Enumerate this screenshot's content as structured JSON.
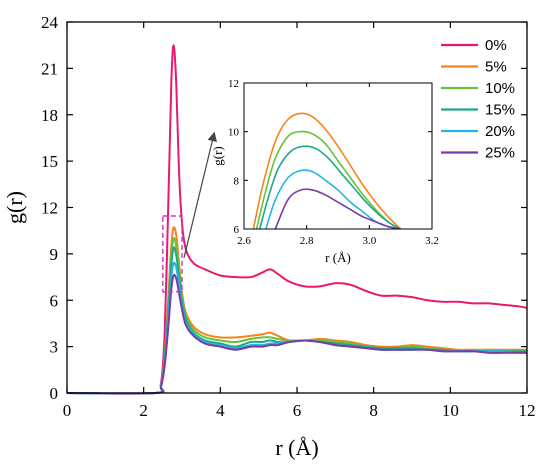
{
  "chart_data": [
    {
      "type": "line",
      "xlabel": "r (Å)",
      "ylabel": "g(r)",
      "xlim": [
        0,
        12
      ],
      "ylim": [
        0,
        24
      ],
      "xticks": [
        0,
        2,
        4,
        6,
        8,
        10,
        12
      ],
      "yticks": [
        0,
        3,
        6,
        9,
        12,
        15,
        18,
        21,
        24
      ],
      "legend_position": "top-right",
      "grid": false,
      "series": [
        {
          "name": "0%",
          "color": "#e8196e",
          "x": [
            0,
            2.3,
            2.45,
            2.55,
            2.65,
            2.72,
            2.78,
            2.85,
            2.92,
            3.0,
            3.1,
            3.3,
            3.6,
            4.0,
            4.4,
            4.8,
            5.1,
            5.3,
            5.5,
            5.8,
            6.2,
            6.6,
            7.0,
            7.4,
            7.8,
            8.2,
            8.6,
            9.0,
            9.4,
            9.8,
            10.2,
            10.6,
            11.0,
            11.4,
            11.8,
            12.0
          ],
          "y": [
            0,
            0,
            0.6,
            4.0,
            13.0,
            20.0,
            22.5,
            20.0,
            14.5,
            11.0,
            9.3,
            8.4,
            8.0,
            7.6,
            7.5,
            7.5,
            7.8,
            8.0,
            7.7,
            7.2,
            6.9,
            6.9,
            7.1,
            7.0,
            6.6,
            6.3,
            6.3,
            6.2,
            6.0,
            5.9,
            5.9,
            5.8,
            5.8,
            5.7,
            5.6,
            5.5
          ]
        },
        {
          "name": "5%",
          "color": "#f5841f",
          "x": [
            0,
            2.3,
            2.45,
            2.55,
            2.65,
            2.72,
            2.78,
            2.85,
            2.92,
            3.0,
            3.1,
            3.3,
            3.6,
            4.0,
            4.4,
            4.8,
            5.1,
            5.3,
            5.5,
            5.8,
            6.2,
            6.6,
            7.0,
            7.4,
            7.8,
            8.2,
            8.6,
            9.0,
            9.4,
            9.8,
            10.2,
            10.6,
            11.0,
            11.4,
            11.8,
            12.0
          ],
          "y": [
            0,
            0,
            0.5,
            2.5,
            6.5,
            9.5,
            10.7,
            10.2,
            8.5,
            6.5,
            5.2,
            4.3,
            3.8,
            3.6,
            3.6,
            3.7,
            3.8,
            3.9,
            3.7,
            3.4,
            3.4,
            3.5,
            3.4,
            3.3,
            3.1,
            3.0,
            3.0,
            3.1,
            3.0,
            2.9,
            2.8,
            2.8,
            2.8,
            2.8,
            2.8,
            2.8
          ]
        },
        {
          "name": "10%",
          "color": "#67c23a",
          "x": [
            0,
            2.3,
            2.45,
            2.55,
            2.65,
            2.72,
            2.78,
            2.85,
            2.92,
            3.0,
            3.1,
            3.3,
            3.6,
            4.0,
            4.4,
            4.8,
            5.1,
            5.3,
            5.5,
            5.8,
            6.2,
            6.6,
            7.0,
            7.4,
            7.8,
            8.2,
            8.6,
            9.0,
            9.4,
            9.8,
            10.2,
            10.6,
            11.0,
            11.4,
            11.8,
            12.0
          ],
          "y": [
            0,
            0,
            0.5,
            2.3,
            6.0,
            8.8,
            10.0,
            9.5,
            8.0,
            6.2,
            5.0,
            4.1,
            3.6,
            3.4,
            3.3,
            3.5,
            3.6,
            3.6,
            3.5,
            3.4,
            3.4,
            3.4,
            3.3,
            3.2,
            3.0,
            2.9,
            2.9,
            3.0,
            2.9,
            2.8,
            2.7,
            2.7,
            2.7,
            2.7,
            2.7,
            2.7
          ]
        },
        {
          "name": "15%",
          "color": "#1aaa8a",
          "x": [
            0,
            2.3,
            2.45,
            2.55,
            2.65,
            2.72,
            2.78,
            2.85,
            2.92,
            3.0,
            3.1,
            3.3,
            3.6,
            4.0,
            4.4,
            4.8,
            5.1,
            5.3,
            5.5,
            5.8,
            6.2,
            6.6,
            7.0,
            7.4,
            7.8,
            8.2,
            8.6,
            9.0,
            9.4,
            9.8,
            10.2,
            10.6,
            11.0,
            11.4,
            11.8,
            12.0
          ],
          "y": [
            0,
            0,
            0.5,
            2.2,
            5.6,
            8.2,
            9.4,
            8.9,
            7.5,
            5.9,
            4.8,
            3.9,
            3.4,
            3.2,
            3.0,
            3.3,
            3.3,
            3.4,
            3.3,
            3.3,
            3.4,
            3.3,
            3.2,
            3.1,
            3.0,
            2.9,
            2.9,
            2.9,
            2.8,
            2.8,
            2.7,
            2.7,
            2.7,
            2.7,
            2.7,
            2.7
          ]
        },
        {
          "name": "20%",
          "color": "#22b5e6",
          "x": [
            0,
            2.3,
            2.45,
            2.55,
            2.65,
            2.72,
            2.78,
            2.85,
            2.92,
            3.0,
            3.1,
            3.3,
            3.6,
            4.0,
            4.4,
            4.8,
            5.1,
            5.3,
            5.5,
            5.8,
            6.2,
            6.6,
            7.0,
            7.4,
            7.8,
            8.2,
            8.6,
            9.0,
            9.4,
            9.8,
            10.2,
            10.6,
            11.0,
            11.4,
            11.8,
            12.0
          ],
          "y": [
            0,
            0,
            0.5,
            2.0,
            5.0,
            7.4,
            8.4,
            8.1,
            7.0,
            5.6,
            4.6,
            3.8,
            3.3,
            3.1,
            2.9,
            3.1,
            3.1,
            3.2,
            3.2,
            3.3,
            3.4,
            3.3,
            3.1,
            3.0,
            2.9,
            2.8,
            2.8,
            2.8,
            2.8,
            2.7,
            2.7,
            2.7,
            2.7,
            2.7,
            2.6,
            2.6
          ]
        },
        {
          "name": "25%",
          "color": "#7b3aa6",
          "x": [
            0,
            2.3,
            2.45,
            2.55,
            2.65,
            2.72,
            2.78,
            2.85,
            2.92,
            3.0,
            3.1,
            3.3,
            3.6,
            4.0,
            4.4,
            4.8,
            5.1,
            5.3,
            5.5,
            5.8,
            6.2,
            6.6,
            7.0,
            7.4,
            7.8,
            8.2,
            8.6,
            9.0,
            9.4,
            9.8,
            10.2,
            10.6,
            11.0,
            11.4,
            11.8,
            12.0
          ],
          "y": [
            0,
            0,
            0.4,
            1.8,
            4.5,
            6.7,
            7.6,
            7.4,
            6.5,
            5.4,
            4.4,
            3.7,
            3.2,
            3.0,
            2.8,
            3.0,
            3.0,
            3.1,
            3.1,
            3.3,
            3.4,
            3.3,
            3.1,
            3.0,
            2.9,
            2.8,
            2.8,
            2.8,
            2.8,
            2.7,
            2.7,
            2.7,
            2.6,
            2.6,
            2.6,
            2.6
          ]
        }
      ]
    },
    {
      "type": "line",
      "xlabel": "r (Å)",
      "ylabel": "g(r)",
      "xlim": [
        2.6,
        3.2
      ],
      "ylim": [
        6,
        12
      ],
      "xticks": [
        2.6,
        2.8,
        3.0,
        3.2
      ],
      "yticks": [
        6,
        8,
        10,
        12
      ],
      "grid": false,
      "series": [
        {
          "color": "#f5841f",
          "x": [
            2.63,
            2.66,
            2.7,
            2.74,
            2.78,
            2.82,
            2.86,
            2.9,
            2.94,
            2.98,
            3.02,
            3.06,
            3.1
          ],
          "y": [
            6.0,
            7.8,
            9.6,
            10.5,
            10.75,
            10.6,
            10.1,
            9.4,
            8.6,
            7.8,
            7.1,
            6.5,
            6.0
          ]
        },
        {
          "color": "#67c23a",
          "x": [
            2.64,
            2.67,
            2.7,
            2.74,
            2.78,
            2.82,
            2.86,
            2.9,
            2.94,
            2.98,
            3.02,
            3.06,
            3.1
          ],
          "y": [
            6.0,
            7.6,
            8.9,
            9.8,
            10.0,
            9.9,
            9.5,
            8.8,
            8.1,
            7.4,
            6.8,
            6.3,
            6.0
          ]
        },
        {
          "color": "#1aaa8a",
          "x": [
            2.65,
            2.68,
            2.71,
            2.75,
            2.79,
            2.83,
            2.87,
            2.91,
            2.95,
            2.99,
            3.03,
            3.07,
            3.1
          ],
          "y": [
            6.0,
            7.4,
            8.5,
            9.2,
            9.4,
            9.3,
            8.9,
            8.3,
            7.7,
            7.1,
            6.6,
            6.2,
            6.0
          ]
        },
        {
          "color": "#22b5e6",
          "x": [
            2.67,
            2.7,
            2.74,
            2.78,
            2.82,
            2.86,
            2.9,
            2.94,
            2.98,
            3.02,
            3.06,
            3.1
          ],
          "y": [
            6.0,
            7.2,
            8.1,
            8.4,
            8.35,
            8.0,
            7.6,
            7.1,
            6.7,
            6.3,
            6.1,
            6.0
          ]
        },
        {
          "color": "#7b3aa6",
          "x": [
            2.7,
            2.74,
            2.78,
            2.82,
            2.86,
            2.9,
            2.94,
            2.98,
            3.02,
            3.06,
            3.1
          ],
          "y": [
            6.0,
            7.2,
            7.6,
            7.6,
            7.4,
            7.1,
            6.8,
            6.5,
            6.3,
            6.1,
            6.0
          ]
        }
      ]
    }
  ]
}
